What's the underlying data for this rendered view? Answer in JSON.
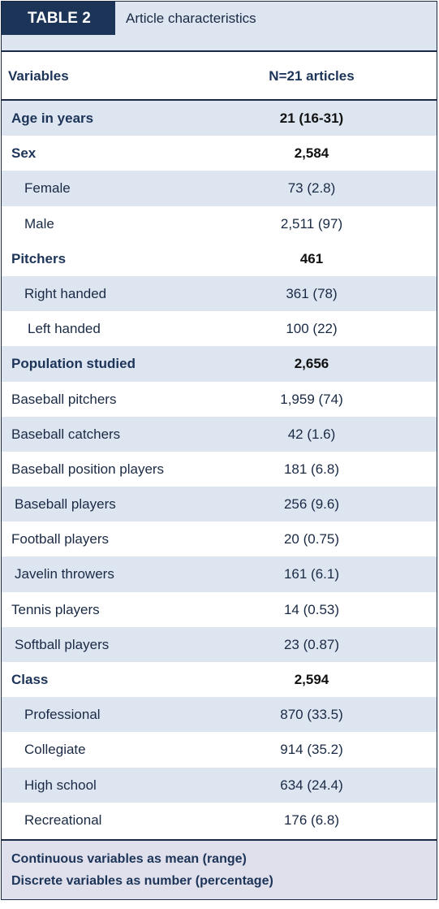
{
  "table": {
    "label": "TABLE 2",
    "title": "Article characteristics",
    "columns": [
      "Variables",
      "N=21 articles"
    ],
    "rows": [
      {
        "label": "Age in years",
        "value": "21 (16-31)"
      },
      {
        "label": "Sex",
        "value": "2,584"
      },
      {
        "label": "Female",
        "value": "73 (2.8)"
      },
      {
        "label": "Male",
        "value": "2,511 (97)"
      },
      {
        "label": "Pitchers",
        "value": "461"
      },
      {
        "label": "Right handed",
        "value": "361 (78)"
      },
      {
        "label": "Left handed",
        "value": "100 (22)"
      },
      {
        "label": "Population studied",
        "value": "2,656"
      },
      {
        "label": "Baseball pitchers",
        "value": "1,959 (74)"
      },
      {
        "label": "Baseball catchers",
        "value": "42 (1.6)"
      },
      {
        "label": "Baseball position players",
        "value": "181 (6.8)"
      },
      {
        "label": "Baseball players",
        "value": "256 (9.6)"
      },
      {
        "label": "Football players",
        "value": "20 (0.75)"
      },
      {
        "label": "Javelin throwers",
        "value": "161 (6.1)"
      },
      {
        "label": "Tennis players",
        "value": "14 (0.53)"
      },
      {
        "label": "Softball players",
        "value": "23 (0.87)"
      },
      {
        "label": "Class",
        "value": "2,594"
      },
      {
        "label": "Professional",
        "value": "870 (33.5)"
      },
      {
        "label": "Collegiate",
        "value": "914 (35.2)"
      },
      {
        "label": "High school",
        "value": "634 (24.4)"
      },
      {
        "label": "Recreational",
        "value": "176 (6.8)"
      }
    ],
    "notes": [
      "Continuous variables as mean (range)",
      "Discrete variables as number (percentage)"
    ]
  },
  "colors": {
    "header_band": "#1d3459",
    "row_shade": "#dde5f1",
    "footer_shade": "#dfe0eb"
  }
}
